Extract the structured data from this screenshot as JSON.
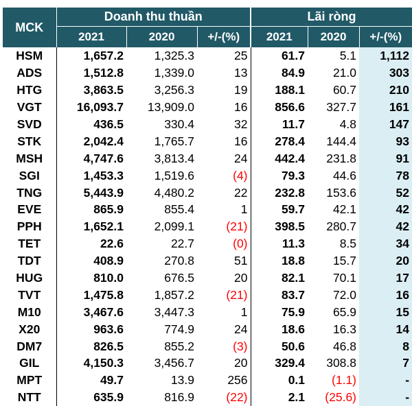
{
  "header": {
    "mck": "MCK",
    "revenue_group": "Doanh thu thuần",
    "profit_group": "Lãi ròng",
    "sub": [
      "2021",
      "2020",
      "+/-(%)",
      "2021",
      "2020",
      "+/-(%)"
    ]
  },
  "colors": {
    "header_bg": "#215967",
    "highlight_bg": "#daeef3",
    "negative": "#ff0000"
  },
  "rows": [
    [
      "HSM",
      "1,657.2",
      "1,325.3",
      "25",
      "61.7",
      "5.1",
      "1,112"
    ],
    [
      "ADS",
      "1,512.8",
      "1,339.0",
      "13",
      "84.9",
      "21.0",
      "303"
    ],
    [
      "HTG",
      "3,863.5",
      "3,256.3",
      "19",
      "188.1",
      "60.7",
      "210"
    ],
    [
      "VGT",
      "16,093.7",
      "13,909.0",
      "16",
      "856.6",
      "327.7",
      "161"
    ],
    [
      "SVD",
      "436.5",
      "330.4",
      "32",
      "11.7",
      "4.8",
      "147"
    ],
    [
      "STK",
      "2,042.4",
      "1,765.7",
      "16",
      "278.4",
      "144.4",
      "93"
    ],
    [
      "MSH",
      "4,747.6",
      "3,813.4",
      "24",
      "442.4",
      "231.8",
      "91"
    ],
    [
      "SGI",
      "1,453.3",
      "1,519.6",
      "(4)",
      "79.3",
      "44.6",
      "78"
    ],
    [
      "TNG",
      "5,443.9",
      "4,480.2",
      "22",
      "232.8",
      "153.6",
      "52"
    ],
    [
      "EVE",
      "865.9",
      "855.4",
      "1",
      "59.7",
      "42.1",
      "42"
    ],
    [
      "PPH",
      "1,652.1",
      "2,099.1",
      "(21)",
      "398.5",
      "280.7",
      "42"
    ],
    [
      "TET",
      "22.6",
      "22.7",
      "(0)",
      "11.3",
      "8.5",
      "34"
    ],
    [
      "TDT",
      "408.9",
      "270.8",
      "51",
      "18.8",
      "15.7",
      "20"
    ],
    [
      "HUG",
      "810.0",
      "676.5",
      "20",
      "82.1",
      "70.1",
      "17"
    ],
    [
      "TVT",
      "1,475.8",
      "1,857.2",
      "(21)",
      "83.7",
      "72.0",
      "16"
    ],
    [
      "M10",
      "3,467.6",
      "3,447.3",
      "1",
      "75.9",
      "65.9",
      "15"
    ],
    [
      "X20",
      "963.6",
      "774.9",
      "24",
      "18.6",
      "16.3",
      "14"
    ],
    [
      "DM7",
      "826.5",
      "855.2",
      "(3)",
      "50.6",
      "46.8",
      "8"
    ],
    [
      "GIL",
      "4,150.3",
      "3,456.7",
      "20",
      "329.4",
      "308.8",
      "7"
    ],
    [
      "MPT",
      "49.7",
      "13.9",
      "256",
      "0.1",
      "(1.1)",
      "-"
    ],
    [
      "NTT",
      "635.9",
      "816.9",
      "(22)",
      "2.1",
      "(25.6)",
      "-"
    ]
  ]
}
